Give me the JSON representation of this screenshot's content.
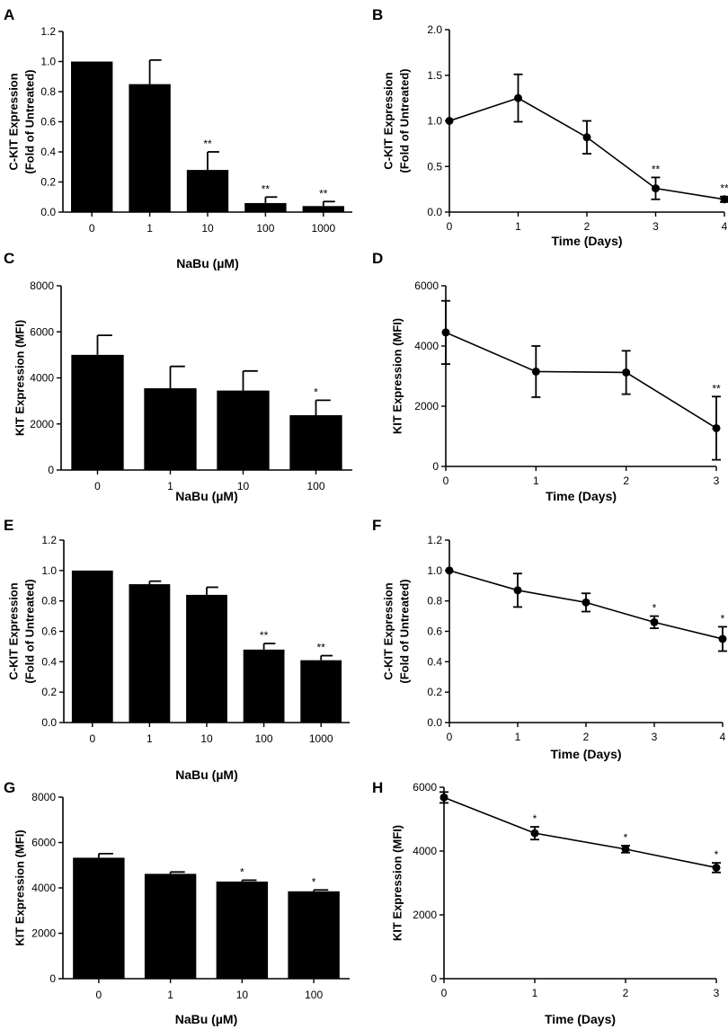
{
  "chart_data": [
    {
      "id": "A",
      "type": "bar",
      "panel_label": "A",
      "categories": [
        "0",
        "1",
        "10",
        "100",
        "1000"
      ],
      "values": [
        1.0,
        0.85,
        0.28,
        0.06,
        0.04
      ],
      "errors": [
        0.0,
        0.16,
        0.12,
        0.04,
        0.03
      ],
      "sig": [
        "",
        "",
        "**",
        "**",
        "**"
      ],
      "ylim": [
        0,
        1.2
      ],
      "yticks": [
        0,
        0.2,
        0.4,
        0.6,
        0.8,
        1.0,
        1.2
      ],
      "ytick_labels": [
        "0.0",
        "0.2",
        "0.4",
        "0.6",
        "0.8",
        "1.0",
        "1.2"
      ],
      "xlabel": "NaBu (µM)",
      "ylabel_line1": "C-KIT Expression",
      "ylabel_line2": "(Fold of Untreated)"
    },
    {
      "id": "B",
      "type": "line",
      "panel_label": "B",
      "x": [
        0,
        1,
        2,
        3,
        4
      ],
      "values": [
        1.0,
        1.25,
        0.82,
        0.26,
        0.14
      ],
      "errors": [
        0.0,
        0.26,
        0.18,
        0.12,
        0.03
      ],
      "sig": [
        "",
        "",
        "",
        "**",
        "**"
      ],
      "ylim": [
        0,
        2.0
      ],
      "yticks": [
        0,
        0.5,
        1.0,
        1.5,
        2.0
      ],
      "ytick_labels": [
        "0.0",
        "0.5",
        "1.0",
        "1.5",
        "2.0"
      ],
      "xlim": [
        0,
        4
      ],
      "xticks": [
        0,
        1,
        2,
        3,
        4
      ],
      "xtick_labels": [
        "0",
        "1",
        "2",
        "3",
        "4"
      ],
      "xlabel": "Time (Days)",
      "ylabel_line1": "C-KIT Expression",
      "ylabel_line2": "(Fold of Untreated)"
    },
    {
      "id": "C",
      "type": "bar",
      "panel_label": "C",
      "categories": [
        "0",
        "1",
        "10",
        "100"
      ],
      "values": [
        5000,
        3550,
        3450,
        2380
      ],
      "errors": [
        850,
        950,
        850,
        650
      ],
      "sig": [
        "",
        "",
        "",
        "*"
      ],
      "ylim": [
        0,
        8000
      ],
      "yticks": [
        0,
        2000,
        4000,
        6000,
        8000
      ],
      "ytick_labels": [
        "0",
        "2000",
        "4000",
        "6000",
        "8000"
      ],
      "xlabel": "NaBu (µM)",
      "ylabel_line1": "KIT Expression (MFI)",
      "ylabel_line2": ""
    },
    {
      "id": "D",
      "type": "line",
      "panel_label": "D",
      "x": [
        0,
        1,
        2,
        3
      ],
      "values": [
        4450,
        3150,
        3120,
        1270
      ],
      "errors": [
        1050,
        850,
        720,
        1050
      ],
      "sig": [
        "",
        "",
        "",
        "**"
      ],
      "ylim": [
        0,
        6000
      ],
      "yticks": [
        0,
        2000,
        4000,
        6000
      ],
      "ytick_labels": [
        "0",
        "2000",
        "4000",
        "6000"
      ],
      "xlim": [
        0,
        3
      ],
      "xticks": [
        0,
        1,
        2,
        3
      ],
      "xtick_labels": [
        "0",
        "1",
        "2",
        "3"
      ],
      "xlabel": "Time (Days)",
      "ylabel_line1": "KIT Expression (MFI)",
      "ylabel_line2": ""
    },
    {
      "id": "E",
      "type": "bar",
      "panel_label": "E",
      "categories": [
        "0",
        "1",
        "10",
        "100",
        "1000"
      ],
      "values": [
        1.0,
        0.91,
        0.84,
        0.48,
        0.41
      ],
      "errors": [
        0.0,
        0.02,
        0.05,
        0.04,
        0.03
      ],
      "sig": [
        "",
        "",
        "",
        "**",
        "**"
      ],
      "ylim": [
        0,
        1.2
      ],
      "yticks": [
        0,
        0.2,
        0.4,
        0.6,
        0.8,
        1.0,
        1.2
      ],
      "ytick_labels": [
        "0.0",
        "0.2",
        "0.4",
        "0.6",
        "0.8",
        "1.0",
        "1.2"
      ],
      "xlabel": "NaBu (µM)",
      "ylabel_line1": "C-KIT Expression",
      "ylabel_line2": "(Fold of Untreated)"
    },
    {
      "id": "F",
      "type": "line",
      "panel_label": "F",
      "x": [
        0,
        1,
        2,
        3,
        4
      ],
      "values": [
        1.0,
        0.87,
        0.79,
        0.66,
        0.55
      ],
      "errors": [
        0.0,
        0.11,
        0.06,
        0.04,
        0.08
      ],
      "sig": [
        "",
        "",
        "",
        "*",
        "*"
      ],
      "ylim": [
        0,
        1.2
      ],
      "yticks": [
        0,
        0.2,
        0.4,
        0.6,
        0.8,
        1.0,
        1.2
      ],
      "ytick_labels": [
        "0.0",
        "0.2",
        "0.4",
        "0.6",
        "0.8",
        "1.0",
        "1.2"
      ],
      "xlim": [
        0,
        4
      ],
      "xticks": [
        0,
        1,
        2,
        3,
        4
      ],
      "xtick_labels": [
        "0",
        "1",
        "2",
        "3",
        "4"
      ],
      "xlabel": "Time (Days)",
      "ylabel_line1": "C-KIT Expression",
      "ylabel_line2": "(Fold of Untreated)"
    },
    {
      "id": "G",
      "type": "bar",
      "panel_label": "G",
      "categories": [
        "0",
        "1",
        "10",
        "100"
      ],
      "values": [
        5330,
        4620,
        4280,
        3850
      ],
      "errors": [
        180,
        80,
        60,
        60
      ],
      "sig": [
        "",
        "",
        "*",
        "*"
      ],
      "ylim": [
        0,
        8000
      ],
      "yticks": [
        0,
        2000,
        4000,
        6000,
        8000
      ],
      "ytick_labels": [
        "0",
        "2000",
        "4000",
        "6000",
        "8000"
      ],
      "xlabel": "NaBu (µM)",
      "ylabel_line1": "KIT Expression (MFI)",
      "ylabel_line2": ""
    },
    {
      "id": "H",
      "type": "line",
      "panel_label": "H",
      "x": [
        0,
        1,
        2,
        3
      ],
      "values": [
        5680,
        4560,
        4060,
        3480
      ],
      "errors": [
        170,
        200,
        110,
        150
      ],
      "sig": [
        "",
        "*",
        "*",
        "*"
      ],
      "ylim": [
        0,
        6000
      ],
      "yticks": [
        0,
        2000,
        4000,
        6000
      ],
      "ytick_labels": [
        "0",
        "2000",
        "4000",
        "6000"
      ],
      "xlim": [
        0,
        3
      ],
      "xticks": [
        0,
        1,
        2,
        3
      ],
      "xtick_labels": [
        "0",
        "1",
        "2",
        "3"
      ],
      "xlabel": "Time (Days)",
      "ylabel_line1": "KIT Expression (MFI)",
      "ylabel_line2": ""
    }
  ]
}
